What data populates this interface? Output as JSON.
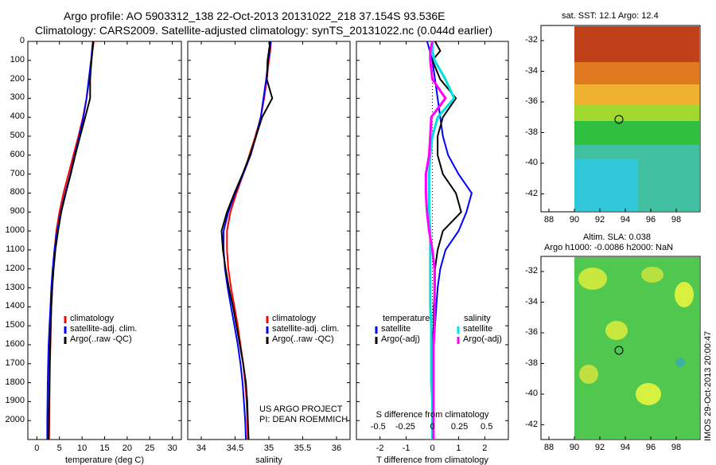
{
  "header": {
    "title_line1": "Argo profile: AO 5903312_138 22-Oct-2013 20131022_218 37.154S 93.536E",
    "title_line2": "Climatology: CARS2009. Satellite-adjusted climatology: synTS_20131022.nc (0.044d earlier)"
  },
  "maps": {
    "sst_title": "sat. SST: 12.1 Argo: 12.4",
    "sla_title1": "Altim. SLA: 0.038",
    "sla_title2": "Argo h1000: -0.0086 h2000: NaN",
    "side_text": "IMOS 29-Oct-2013 20:00:47",
    "y_ticks": [
      "-32",
      "-34",
      "-36",
      "-38",
      "-40",
      "-42"
    ],
    "x_ticks": [
      "88",
      "90",
      "92",
      "94",
      "96",
      "98"
    ],
    "colors": {
      "sst_warm": "#c0401a",
      "sst_mid": "#f0b030",
      "sst_green": "#30c040",
      "sst_cyan": "#30c8d8",
      "sla_base": "#50c850",
      "sla_hi": "#d8f040",
      "marker": "#000000"
    }
  },
  "notes": {
    "project": "US ARGO PROJECT",
    "pi": "PI: DEAN ROEMMICH"
  },
  "chart_data": [
    {
      "type": "line",
      "xlabel": "temperature (deg C)",
      "ylabel": "",
      "xlim": [
        -2,
        32
      ],
      "ylim": [
        2100,
        0
      ],
      "x_ticks": [
        "0",
        "5",
        "10",
        "15",
        "20",
        "25",
        "30"
      ],
      "y_ticks": [
        "0",
        "100",
        "200",
        "300",
        "400",
        "500",
        "600",
        "700",
        "800",
        "900",
        "1000",
        "1100",
        "1200",
        "1300",
        "1400",
        "1500",
        "1600",
        "1700",
        "1800",
        "1900",
        "2000"
      ],
      "depth": [
        0,
        50,
        100,
        200,
        300,
        400,
        500,
        600,
        700,
        800,
        900,
        1000,
        1100,
        1200,
        1300,
        1400,
        1500,
        1600,
        1700,
        1800,
        1900,
        2000,
        2100
      ],
      "series": [
        {
          "name": "climatology",
          "color": "#ff0000",
          "values": [
            12.6,
            12.3,
            12.1,
            11.6,
            11.0,
            10.2,
            9.2,
            8.1,
            7.0,
            5.9,
            5.0,
            4.3,
            3.9,
            3.6,
            3.4,
            3.2,
            3.1,
            3.0,
            2.9,
            2.85,
            2.8,
            2.75,
            2.7
          ]
        },
        {
          "name": "satellite-adj. clim.",
          "color": "#0000ff",
          "values": [
            12.4,
            12.2,
            12.0,
            11.5,
            11.0,
            10.3,
            9.4,
            8.4,
            7.4,
            6.3,
            5.3,
            4.5,
            3.9,
            3.5,
            3.2,
            3.0,
            2.8,
            2.6,
            2.5,
            2.4,
            2.35,
            2.3,
            2.3
          ]
        },
        {
          "name": "Argo(..raw -QC)",
          "color": "#000000",
          "values": [
            12.5,
            12.3,
            12.1,
            11.8,
            11.8,
            10.7,
            9.6,
            8.5,
            7.5,
            6.4,
            5.4,
            4.7,
            4.1,
            3.7,
            3.4,
            3.2,
            3.05,
            2.95,
            2.85,
            2.8,
            2.7,
            2.65,
            2.6
          ]
        }
      ]
    },
    {
      "type": "line",
      "xlabel": "salinity",
      "ylabel": "",
      "xlim": [
        33.8,
        36.2
      ],
      "ylim": [
        2100,
        0
      ],
      "x_ticks": [
        "34",
        "34.5",
        "35",
        "35.5",
        "36"
      ],
      "depth": [
        0,
        50,
        100,
        200,
        300,
        400,
        500,
        600,
        700,
        800,
        900,
        1000,
        1100,
        1200,
        1300,
        1400,
        1500,
        1600,
        1700,
        1800,
        1900,
        2000,
        2100
      ],
      "series": [
        {
          "name": "climatology",
          "color": "#ff0000",
          "values": [
            35.03,
            35.02,
            35.0,
            34.97,
            34.93,
            34.88,
            34.8,
            34.71,
            34.62,
            34.52,
            34.43,
            34.38,
            34.38,
            34.4,
            34.44,
            34.49,
            34.54,
            34.58,
            34.62,
            34.65,
            34.67,
            34.68,
            34.69
          ]
        },
        {
          "name": "satellite-adj. clim.",
          "color": "#0000ff",
          "values": [
            35.03,
            35.01,
            34.99,
            34.96,
            34.92,
            34.88,
            34.81,
            34.73,
            34.62,
            34.5,
            34.4,
            34.33,
            34.33,
            34.35,
            34.39,
            34.44,
            34.49,
            34.54,
            34.58,
            34.61,
            34.63,
            34.65,
            34.66
          ]
        },
        {
          "name": "Argo(..raw -QC)",
          "color": "#000000",
          "values": [
            35.02,
            35.0,
            34.98,
            34.97,
            35.05,
            34.9,
            34.81,
            34.72,
            34.61,
            34.49,
            34.38,
            34.3,
            34.32,
            34.36,
            34.41,
            34.47,
            34.52,
            34.57,
            34.62,
            34.66,
            34.68,
            34.69,
            34.7
          ]
        }
      ]
    },
    {
      "type": "line",
      "xlabel": "T difference from climatology",
      "xlabel_top": "S difference from climatology",
      "xlim": [
        -2.9,
        2.9
      ],
      "ylim": [
        2100,
        0
      ],
      "x_ticks": [
        "-2",
        "-1",
        "0",
        "1",
        "2"
      ],
      "x_ticks_top": [
        "-0.5",
        "-0.25",
        "0",
        "0.25",
        "0.5"
      ],
      "legend_headers": [
        "temperature",
        "salinity"
      ],
      "depth": [
        0,
        50,
        100,
        200,
        300,
        400,
        500,
        600,
        700,
        800,
        900,
        1000,
        1100,
        1200,
        1300,
        1400,
        1500,
        1600,
        1700,
        1800,
        1900,
        2000,
        2100
      ],
      "series": [
        {
          "name": "satellite",
          "group": "temperature",
          "color": "#0000ff",
          "values": [
            -0.2,
            -0.1,
            0,
            0.1,
            0.2,
            0.3,
            0.4,
            0.6,
            1.0,
            1.5,
            1.3,
            1.0,
            0.5,
            0.3,
            0.2,
            0.15,
            0.1,
            0.05,
            0.05,
            0,
            0,
            0,
            0
          ]
        },
        {
          "name": "Argo(-adj)",
          "group": "temperature",
          "color": "#000000",
          "values": [
            0.1,
            0.3,
            0.0,
            0.3,
            0.9,
            0.4,
            0.2,
            0.2,
            0.4,
            0.9,
            1.1,
            0.4,
            0.2,
            0.1,
            0.1,
            0.05,
            0.05,
            0,
            0,
            0,
            0,
            0,
            0
          ]
        },
        {
          "name": "satellite",
          "group": "salinity",
          "color": "#00e0e0",
          "values": [
            0,
            0,
            0.02,
            0.12,
            0.2,
            0.05,
            0,
            -0.02,
            -0.03,
            -0.03,
            -0.03,
            -0.02,
            -0.02,
            -0.02,
            -0.02,
            -0.02,
            -0.01,
            -0.01,
            -0.01,
            -0.01,
            0,
            0,
            0
          ]
        },
        {
          "name": "Argo(-adj)",
          "group": "salinity",
          "color": "#ff00ff",
          "values": [
            0,
            -0.02,
            -0.02,
            0,
            0.12,
            -0.01,
            -0.02,
            -0.03,
            -0.06,
            -0.06,
            -0.05,
            -0.03,
            0,
            0.02,
            0.02,
            0.02,
            0.02,
            0.01,
            0.01,
            0.01,
            0.01,
            0.01,
            0.01
          ]
        }
      ]
    }
  ],
  "legend": {
    "items": [
      "climatology",
      "satellite-adj. clim.",
      "Argo(..raw -QC)"
    ],
    "diff_headers": [
      "temperature",
      "salinity"
    ],
    "diff_items": [
      "satellite",
      "Argo(-adj)",
      "satellite",
      "Argo(-adj)"
    ]
  }
}
